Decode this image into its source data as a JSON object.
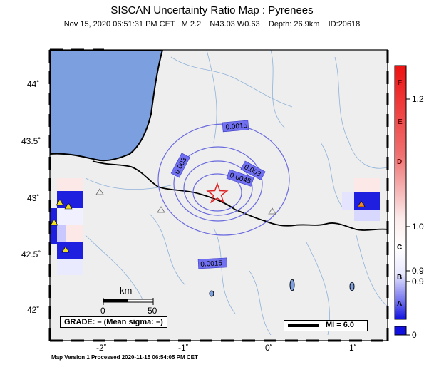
{
  "header": {
    "title": "SISCAN Uncertainty Ratio Map : Pyrenees",
    "subtitle": "Nov 15, 2020 06:51:31 PM CET   M 2.2    N43.03 W0.63    Depth: 26.9km    ID:20618"
  },
  "footer": "Map Version 1 Processed 2020-11-15 06:54:05 PM CET",
  "axes": {
    "lat_labels": [
      "44˚",
      "43.5˚",
      "43˚",
      "42.5˚",
      "42˚"
    ],
    "lon_labels": [
      "-2˚",
      "-1˚",
      "0˚",
      "1˚"
    ]
  },
  "contour_labels": [
    "0.0015",
    "0.003",
    "0.003",
    "0.0045",
    "0.0015"
  ],
  "scale_bar": {
    "unit": "km",
    "start": "0",
    "end": "50"
  },
  "grade_text": "GRADE: – (Mean sigma: –)",
  "mi_text": "MI = 6.0",
  "colorbar": {
    "right_labels": [
      "1.2",
      "1.0",
      "0.9",
      "0.9",
      "0"
    ],
    "inner_letters": [
      "F",
      "E",
      "D",
      "C",
      "B",
      "A"
    ]
  },
  "colors": {
    "land": "#eeeeee",
    "sea": "#7b9fdf",
    "contour": "#6a6adf",
    "epicenter": "#dd2222",
    "station_yellow": "#f0e020",
    "station_orange": "#f08a20"
  }
}
